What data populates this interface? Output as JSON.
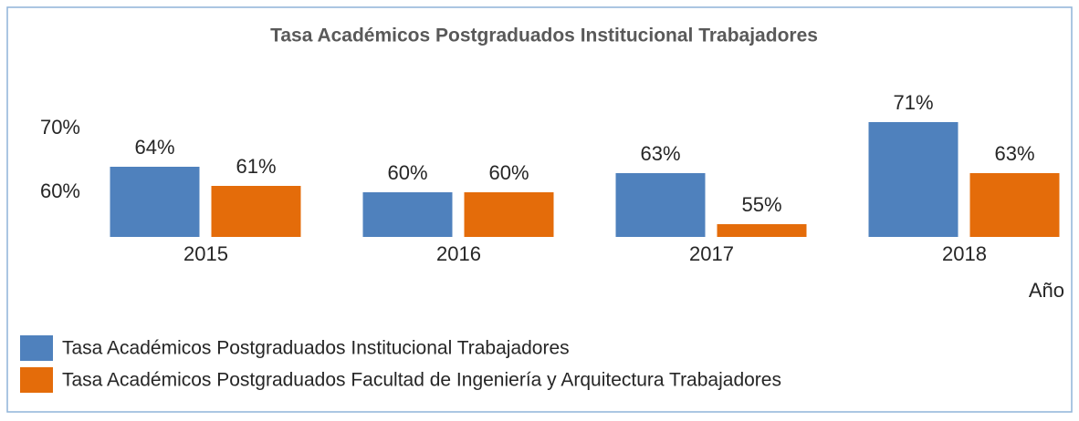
{
  "chart_data": {
    "type": "bar",
    "title": "Tasa Académicos Postgraduados Institucional Trabajadores",
    "x_label": "Año",
    "categories": [
      "2015",
      "2016",
      "2017",
      "2018"
    ],
    "series": [
      {
        "name": "Tasa Académicos Postgraduados Institucional Trabajadores",
        "color": "#4f81bd",
        "values": [
          64,
          60,
          63,
          71
        ],
        "value_labels": [
          "64%",
          "60%",
          "63%",
          "71%"
        ]
      },
      {
        "name": "Tasa Académicos Postgraduados Facultad de Ingeniería y Arquitectura Trabajadores",
        "color": "#e46c0a",
        "values": [
          61,
          60,
          55,
          63
        ],
        "value_labels": [
          "61%",
          "60%",
          "55%",
          "63%"
        ]
      }
    ],
    "ylim": [
      53,
      75
    ],
    "yticks": [
      {
        "value": 60,
        "label": "60%"
      },
      {
        "value": 70,
        "label": "70%"
      }
    ],
    "legend": "bottom"
  }
}
